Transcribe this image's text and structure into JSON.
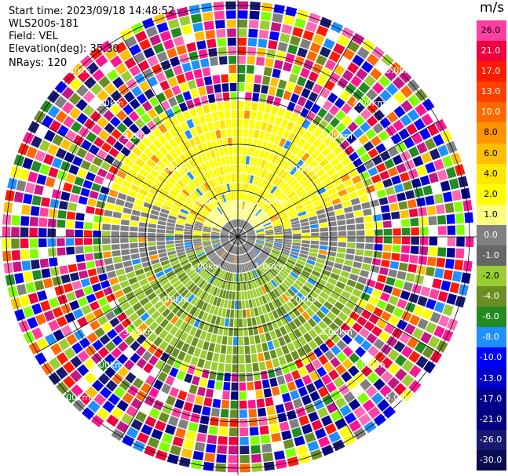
{
  "info": {
    "start_time": "Start time: 2023/09/18 14:48:52",
    "instrument": "WLS200s-181",
    "field": "Field: VEL",
    "elevation": "Elevation(deg): 35.30",
    "nrays": "NRays: 120"
  },
  "colorbar": {
    "unit": "m/s",
    "levels": [
      {
        "label": "26.0",
        "color": "#ff3fa0"
      },
      {
        "label": "21.0",
        "color": "#f0003c"
      },
      {
        "label": "17.0",
        "color": "#ff1a00"
      },
      {
        "label": "13.0",
        "color": "#ff4000"
      },
      {
        "label": "10.0",
        "color": "#ff6a00"
      },
      {
        "label": "8.0",
        "color": "#ff9400"
      },
      {
        "label": "6.0",
        "color": "#ffbf00"
      },
      {
        "label": "4.0",
        "color": "#ffe600"
      },
      {
        "label": "2.0",
        "color": "#ffff00"
      },
      {
        "label": "1.0",
        "color": "#ffff80"
      },
      {
        "label": "0.0",
        "color": "#808080"
      },
      {
        "label": "-1.0",
        "color": "#666666"
      },
      {
        "label": "-2.0",
        "color": "#9acd32"
      },
      {
        "label": "-4.0",
        "color": "#6b8e23"
      },
      {
        "label": "-6.0",
        "color": "#228b22"
      },
      {
        "label": "-8.0",
        "color": "#1e90ff"
      },
      {
        "label": "-10.0",
        "color": "#0000ff"
      },
      {
        "label": "-13.0",
        "color": "#0000cd"
      },
      {
        "label": "-17.0",
        "color": "#00008b"
      },
      {
        "label": "-21.0",
        "color": "#000080"
      },
      {
        "label": "-26.0",
        "color": "#191970"
      },
      {
        "label": "-30.0",
        "color": "#0b0b50"
      }
    ]
  },
  "range_rings": [
    {
      "label": "1.00km"
    },
    {
      "label": "2.00km"
    },
    {
      "label": "3.00km"
    },
    {
      "label": "4.00km"
    },
    {
      "label": "5.00km"
    }
  ],
  "plot": {
    "nrays": 120,
    "ngates": 26,
    "noise_colors": [
      "#ff1493",
      "#ff3fa0",
      "#f0003c",
      "#ff1a00",
      "#ffbf00",
      "#ffff00",
      "#9acd32",
      "#6b8e23",
      "#228b22",
      "#1e90ff",
      "#0000ff",
      "#0000cd",
      "#00008b",
      "#191970",
      "#808080",
      "#ff6a00",
      "#ff69b4",
      "#7fff00",
      "#ffffff",
      "#c71585"
    ]
  }
}
